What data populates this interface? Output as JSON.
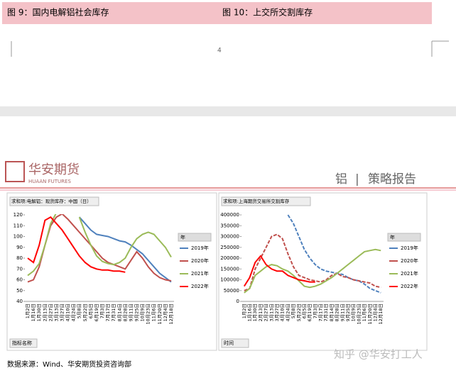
{
  "header": {
    "left": "图 9：国内电解铝社会库存",
    "right": "图 10：上交所交割库存"
  },
  "page_number": "4",
  "logo": {
    "name": "华安期货",
    "sub": "HUAAN FUTURES"
  },
  "report": {
    "topic": "铝",
    "divider": "|",
    "kind": "策略报告"
  },
  "footer": "数据来源：Wind、华安期货投资咨询部",
  "watermark": "知乎 @华安打工人",
  "chart_data": [
    {
      "type": "line",
      "title": "求和项:电解铝：现货库存：中国（日）",
      "filter": "指标名称",
      "legend_title": "年",
      "categories": [
        "1月2日",
        "1月16日",
        "1月30日",
        "2月13日",
        "2月27日",
        "3月13日",
        "3月27日",
        "4月10日",
        "4月24日",
        "5月8日",
        "5月22日",
        "6月5日",
        "6月19日",
        "7月3日",
        "7月17日",
        "7月31日",
        "8月14日",
        "8月28日",
        "9月11日",
        "9月25日",
        "10月9日",
        "10月23日",
        "11月6日",
        "11月20日",
        "12月4日",
        "12月18日"
      ],
      "ylim": [
        40,
        120
      ],
      "yticks": [
        40,
        50,
        60,
        70,
        80,
        90,
        100,
        110,
        120
      ],
      "series": [
        {
          "name": "2019年",
          "color": "#4f81bd",
          "values": [
            null,
            null,
            null,
            null,
            null,
            null,
            null,
            null,
            null,
            118,
            112,
            106,
            102,
            101,
            100,
            98,
            96,
            95,
            92,
            88,
            84,
            78,
            72,
            66,
            62,
            58
          ]
        },
        {
          "name": "2020年",
          "color": "#c0504d",
          "values": [
            58,
            60,
            72,
            92,
            110,
            118,
            121,
            116,
            110,
            104,
            98,
            92,
            86,
            80,
            76,
            74,
            72,
            70,
            78,
            86,
            80,
            72,
            66,
            62,
            60,
            59
          ]
        },
        {
          "name": "2021年",
          "color": "#9bbb59",
          "values": [
            64,
            68,
            75,
            92,
            112,
            122,
            null,
            null,
            null,
            118,
            104,
            92,
            82,
            77,
            75,
            74,
            76,
            80,
            90,
            98,
            102,
            104,
            102,
            96,
            90,
            81
          ]
        },
        {
          "name": "2022年",
          "color": "#ff0000",
          "values": [
            80,
            76,
            92,
            115,
            118,
            112,
            106,
            98,
            90,
            82,
            76,
            72,
            70,
            69,
            69,
            68,
            68,
            67,
            null,
            null,
            null,
            null,
            null,
            null,
            null,
            null
          ]
        }
      ]
    },
    {
      "type": "line",
      "title": "求和项:上海期货交易所交割库存",
      "filter": "时间",
      "legend_title": "年",
      "categories": [
        "1月2日",
        "1月16日",
        "1月30日",
        "2月13日",
        "2月27日",
        "3月13日",
        "3月27日",
        "4月10日",
        "4月24日",
        "5月8日",
        "5月22日",
        "6月5日",
        "6月19日",
        "7月3日",
        "7月17日",
        "7月31日",
        "8月14日",
        "8月28日",
        "9月11日",
        "9月25日",
        "10月9日",
        "10月23日",
        "11月6日",
        "11月20日",
        "12月4日",
        "12月18日"
      ],
      "ylim": [
        0,
        400000
      ],
      "yticks": [
        0,
        50000,
        100000,
        150000,
        200000,
        250000,
        300000,
        350000,
        400000
      ],
      "series": [
        {
          "name": "2019年",
          "color": "#4f81bd",
          "dashed": true,
          "values": [
            null,
            null,
            null,
            null,
            null,
            null,
            null,
            null,
            400000,
            360000,
            300000,
            240000,
            200000,
            170000,
            150000,
            140000,
            135000,
            130000,
            125000,
            110000,
            100000,
            95000,
            80000,
            60000,
            50000,
            40000
          ]
        },
        {
          "name": "2020年",
          "color": "#c0504d",
          "dashed": true,
          "values": [
            50000,
            60000,
            150000,
            200000,
            250000,
            300000,
            310000,
            290000,
            220000,
            160000,
            120000,
            110000,
            100000,
            95000,
            90000,
            100000,
            120000,
            130000,
            115000,
            110000,
            100000,
            95000,
            90000,
            85000,
            70000,
            65000
          ]
        },
        {
          "name": "2021年",
          "color": "#9bbb59",
          "values": [
            40000,
            60000,
            120000,
            140000,
            160000,
            170000,
            165000,
            150000,
            140000,
            120000,
            95000,
            70000,
            65000,
            70000,
            80000,
            95000,
            110000,
            130000,
            150000,
            170000,
            190000,
            210000,
            230000,
            235000,
            240000,
            235000
          ]
        },
        {
          "name": "2022年",
          "color": "#ff0000",
          "values": [
            70000,
            110000,
            180000,
            210000,
            170000,
            150000,
            140000,
            140000,
            120000,
            110000,
            100000,
            95000,
            90000,
            90000,
            null,
            null,
            null,
            null,
            null,
            null,
            null,
            null,
            null,
            null,
            null,
            null
          ]
        }
      ]
    }
  ]
}
